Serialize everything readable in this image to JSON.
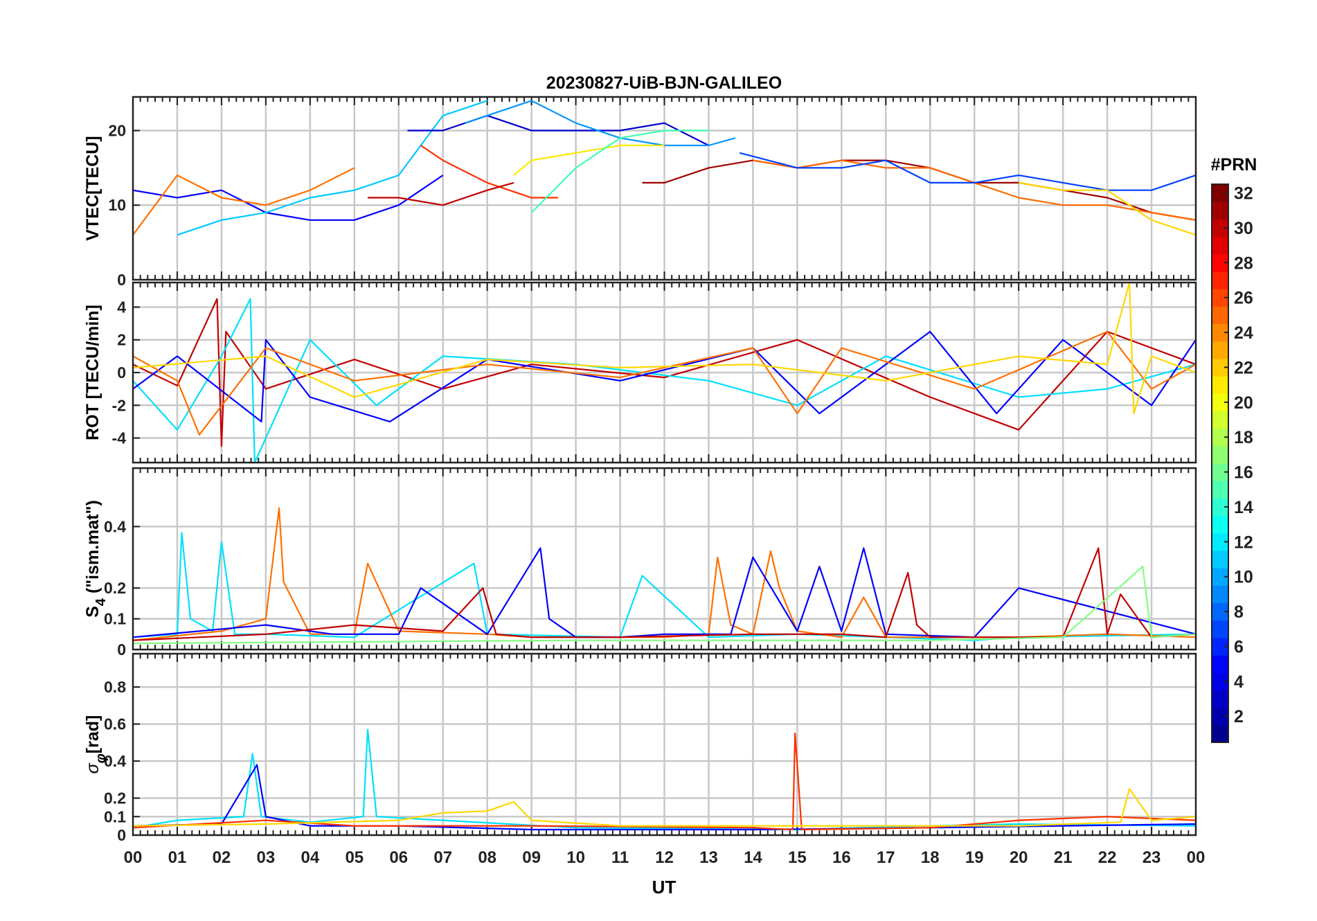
{
  "chart_data": {
    "type": "line",
    "title": "20230827-UiB-BJN-GALILEO",
    "xlabel": "UT",
    "xlim": [
      0,
      24
    ],
    "x_tick_labels": [
      "00",
      "01",
      "02",
      "03",
      "04",
      "05",
      "06",
      "07",
      "08",
      "09",
      "10",
      "11",
      "12",
      "13",
      "14",
      "15",
      "16",
      "17",
      "18",
      "19",
      "20",
      "21",
      "22",
      "23",
      "00"
    ],
    "colorbar": {
      "label": "#PRN",
      "range": [
        1,
        32
      ],
      "tick_labels": [
        "2",
        "4",
        "6",
        "8",
        "10",
        "12",
        "14",
        "16",
        "18",
        "20",
        "22",
        "24",
        "26",
        "28",
        "30",
        "32"
      ],
      "colormap": "jet",
      "colors": [
        "#00008f",
        "#0000ff",
        "#0080ff",
        "#00ffff",
        "#80ff80",
        "#ffff00",
        "#ff8000",
        "#ff0000",
        "#800000"
      ]
    },
    "panels": [
      {
        "id": "vtec",
        "ylabel": "VTEC[TECU]",
        "ylim": [
          0,
          24.5
        ],
        "y_tick_labels": [
          "0",
          "10",
          "20"
        ],
        "series": [
          {
            "prn": 4,
            "color": "#0000ff",
            "x": [
              0,
              1,
              2,
              3,
              4,
              5,
              6,
              7
            ],
            "y": [
              12,
              11,
              12,
              9,
              8,
              8,
              10,
              14
            ]
          },
          {
            "prn": 10,
            "color": "#00c8ff",
            "x": [
              1,
              2,
              3,
              4,
              5,
              6,
              7,
              8
            ],
            "y": [
              6,
              8,
              9,
              11,
              12,
              14,
              22,
              24
            ]
          },
          {
            "prn": 24,
            "color": "#ff7000",
            "x": [
              0,
              1,
              2,
              3,
              4,
              5
            ],
            "y": [
              6,
              14,
              11,
              10,
              12,
              15
            ]
          },
          {
            "prn": 3,
            "color": "#0000cd",
            "x": [
              6.2,
              7,
              8,
              9,
              10,
              11,
              12,
              13
            ],
            "y": [
              20,
              20,
              22,
              20,
              20,
              20,
              21,
              18
            ]
          },
          {
            "prn": 9,
            "color": "#0096ff",
            "x": [
              7.5,
              8,
              9,
              10,
              11,
              12,
              13,
              13.6
            ],
            "y": [
              21,
              22,
              24,
              21,
              19,
              18,
              18,
              19
            ]
          },
          {
            "prn": 26,
            "color": "#ff3000",
            "x": [
              6.5,
              7,
              8,
              9,
              9.6
            ],
            "y": [
              18,
              16,
              13,
              11,
              11
            ]
          },
          {
            "prn": 20,
            "color": "#ffe600",
            "x": [
              8.6,
              9,
              10,
              11,
              12
            ],
            "y": [
              14,
              16,
              17,
              18,
              18
            ]
          },
          {
            "prn": 14,
            "color": "#40ffb0",
            "x": [
              9,
              10,
              11,
              12,
              13
            ],
            "y": [
              9,
              15,
              19,
              20,
              20
            ]
          },
          {
            "prn": 30,
            "color": "#c00000",
            "x": [
              5.3,
              6,
              7,
              8,
              8.6
            ],
            "y": [
              11,
              11,
              10,
              12,
              13
            ]
          },
          {
            "prn": 31,
            "color": "#a00000",
            "x": [
              11.5,
              12,
              13,
              14,
              15,
              16,
              17,
              18,
              19,
              20,
              21,
              22,
              23,
              24
            ],
            "y": [
              13,
              13,
              15,
              16,
              15,
              16,
              16,
              15,
              13,
              13,
              12,
              11,
              9,
              8
            ]
          },
          {
            "prn": 24,
            "color": "#ff6a00",
            "x": [
              14,
              15,
              16,
              17,
              18,
              19,
              20,
              21,
              22,
              23,
              24
            ],
            "y": [
              16,
              15,
              16,
              15,
              15,
              13,
              11,
              10,
              10,
              9,
              8
            ]
          },
          {
            "prn": 5,
            "color": "#0040ff",
            "x": [
              13.7,
              15,
              16,
              17,
              18,
              19,
              20,
              21,
              22,
              23,
              24
            ],
            "y": [
              17,
              15,
              15,
              16,
              13,
              13,
              14,
              13,
              12,
              12,
              14
            ]
          },
          {
            "prn": 21,
            "color": "#ffd700",
            "x": [
              20,
              21,
              22,
              23,
              24
            ],
            "y": [
              13,
              12,
              12,
              8,
              6
            ]
          }
        ]
      },
      {
        "id": "rot",
        "ylabel": "ROT [TECU/min]",
        "ylim": [
          -5.5,
          5.5
        ],
        "y_tick_labels": [
          "-4",
          "-2",
          "0",
          "2",
          "4"
        ],
        "series": [
          {
            "prn": 30,
            "color": "#c00000",
            "x": [
              0,
              1,
              1.9,
              2,
              2.1,
              3,
              5,
              7,
              9,
              12,
              15,
              18,
              20,
              22,
              24
            ],
            "y": [
              0.5,
              -0.8,
              4.5,
              -4.5,
              2.5,
              -1,
              0.8,
              -1,
              0.5,
              -0.3,
              2,
              -1.5,
              -3.5,
              2.5,
              0.5
            ]
          },
          {
            "prn": 12,
            "color": "#00e0ff",
            "x": [
              0,
              1,
              2,
              2.65,
              2.75,
              4,
              5.5,
              7,
              10,
              13,
              15,
              17,
              20,
              22,
              24
            ],
            "y": [
              -0.5,
              -3.5,
              1,
              4.5,
              -5.5,
              2,
              -2,
              1,
              0.5,
              -0.5,
              -2,
              1,
              -1.5,
              -1,
              0.5
            ]
          },
          {
            "prn": 4,
            "color": "#0000ff",
            "x": [
              0,
              1,
              2.9,
              3,
              4,
              5.8,
              8,
              11,
              14,
              15.5,
              18,
              19.5,
              21,
              23,
              24
            ],
            "y": [
              -1,
              1,
              -3,
              2,
              -1.5,
              -3,
              0.8,
              -0.5,
              1.5,
              -2.5,
              2.5,
              -2.5,
              2,
              -2,
              2
            ]
          },
          {
            "prn": 24,
            "color": "#ff7000",
            "x": [
              0,
              1,
              1.5,
              3,
              5,
              8,
              11,
              14,
              15,
              16,
              19,
              22,
              23,
              24
            ],
            "y": [
              1,
              -0.5,
              -3.8,
              1.5,
              -0.5,
              0.5,
              -0.3,
              1.5,
              -2.5,
              1.5,
              -1,
              2.5,
              -1,
              0.5
            ]
          },
          {
            "prn": 21,
            "color": "#ffd700",
            "x": [
              0,
              3,
              5,
              8,
              11,
              14,
              17,
              20,
              22,
              22.5,
              22.6,
              23,
              24
            ],
            "y": [
              0.3,
              1,
              -1.5,
              0.8,
              0.3,
              0.5,
              -0.5,
              1,
              0.5,
              5.5,
              -2.5,
              1,
              0
            ]
          }
        ]
      },
      {
        "id": "s4",
        "ylabel": "S4 (\"ism.mat\")",
        "ylabel_main": "S",
        "ylabel_sub": "4",
        "ylabel_rest": " (\"ism.mat\")",
        "ylim": [
          0,
          0.59
        ],
        "y_tick_labels": [
          "0",
          "0.1",
          "0.2",
          "0.4"
        ],
        "series": [
          {
            "prn": 12,
            "color": "#00e0ff",
            "x": [
              0,
              1,
              1.1,
              1.3,
              1.8,
              2,
              2.3,
              3,
              5,
              7.7,
              8,
              11,
              11.5,
              13,
              15,
              19,
              20,
              24
            ],
            "y": [
              0.04,
              0.05,
              0.38,
              0.1,
              0.06,
              0.35,
              0.05,
              0.05,
              0.04,
              0.28,
              0.05,
              0.04,
              0.24,
              0.04,
              0.05,
              0.03,
              0.04,
              0.05
            ]
          },
          {
            "prn": 24,
            "color": "#ff7000",
            "x": [
              0,
              2,
              3,
              3.3,
              3.4,
              4,
              5,
              5.3,
              6,
              8,
              9,
              12,
              13,
              13.2,
              13.5,
              14,
              14.4,
              14.6,
              15,
              16,
              16.5,
              17,
              20,
              22,
              24
            ],
            "y": [
              0.03,
              0.06,
              0.1,
              0.46,
              0.22,
              0.05,
              0.05,
              0.28,
              0.06,
              0.05,
              0.04,
              0.04,
              0.05,
              0.3,
              0.08,
              0.05,
              0.32,
              0.2,
              0.06,
              0.04,
              0.17,
              0.04,
              0.04,
              0.05,
              0.04
            ]
          },
          {
            "prn": 4,
            "color": "#0000ff",
            "x": [
              0,
              3,
              4.5,
              6,
              6.5,
              8,
              9.2,
              9.4,
              10,
              11,
              12,
              13.5,
              14,
              15,
              15.5,
              16,
              16.5,
              17,
              19,
              20,
              24
            ],
            "y": [
              0.04,
              0.08,
              0.05,
              0.05,
              0.2,
              0.05,
              0.33,
              0.1,
              0.04,
              0.04,
              0.05,
              0.05,
              0.3,
              0.06,
              0.27,
              0.06,
              0.33,
              0.05,
              0.04,
              0.2,
              0.05
            ]
          },
          {
            "prn": 30,
            "color": "#c00000",
            "x": [
              0,
              3,
              5,
              7,
              7.9,
              8.2,
              9,
              11,
              14,
              16,
              17,
              17.5,
              17.7,
              18,
              19,
              21,
              21.8,
              22,
              22.3,
              23,
              24
            ],
            "y": [
              0.03,
              0.05,
              0.08,
              0.06,
              0.2,
              0.05,
              0.04,
              0.04,
              0.05,
              0.05,
              0.04,
              0.25,
              0.08,
              0.04,
              0.04,
              0.04,
              0.33,
              0.05,
              0.18,
              0.04,
              0.05
            ]
          },
          {
            "prn": 17,
            "color": "#80ff80",
            "x": [
              0,
              10,
              18,
              21,
              22.8,
              23,
              24
            ],
            "y": [
              0.02,
              0.03,
              0.03,
              0.04,
              0.27,
              0.04,
              0.05
            ]
          }
        ]
      },
      {
        "id": "sigphi",
        "ylabel": "σφ[rad]",
        "ylabel_main": "σ",
        "ylabel_sub": "φ",
        "ylabel_rest": "[rad]",
        "ylim": [
          0,
          0.98
        ],
        "y_tick_labels": [
          "0",
          "0.1",
          "0.2",
          "0.4",
          "0.6",
          "0.8"
        ],
        "series": [
          {
            "prn": 12,
            "color": "#00e0ff",
            "x": [
              0,
              1,
              2.5,
              2.7,
              2.9,
              4,
              5.2,
              5.3,
              5.5,
              7,
              10,
              15,
              18,
              20,
              24
            ],
            "y": [
              0.04,
              0.08,
              0.1,
              0.44,
              0.1,
              0.07,
              0.1,
              0.57,
              0.1,
              0.08,
              0.04,
              0.03,
              0.05,
              0.06,
              0.05
            ]
          },
          {
            "prn": 4,
            "color": "#0000ff",
            "x": [
              0,
              2,
              2.8,
              3,
              4,
              6,
              9,
              14,
              18,
              21,
              24
            ],
            "y": [
              0.05,
              0.06,
              0.38,
              0.1,
              0.05,
              0.05,
              0.03,
              0.03,
              0.04,
              0.05,
              0.06
            ]
          },
          {
            "prn": 26,
            "color": "#ff3000",
            "x": [
              0,
              3,
              5,
              9,
              14,
              14.9,
              14.95,
              15.1,
              18,
              20,
              22,
              24
            ],
            "y": [
              0.04,
              0.08,
              0.05,
              0.05,
              0.04,
              0.03,
              0.55,
              0.03,
              0.04,
              0.08,
              0.1,
              0.08
            ]
          },
          {
            "prn": 21,
            "color": "#ffd700",
            "x": [
              0,
              3,
              6,
              7,
              8,
              8.6,
              9,
              11,
              20,
              22.3,
              22.5,
              23,
              24
            ],
            "y": [
              0.05,
              0.06,
              0.08,
              0.12,
              0.13,
              0.18,
              0.08,
              0.05,
              0.05,
              0.07,
              0.25,
              0.08,
              0.1
            ]
          }
        ]
      }
    ]
  }
}
